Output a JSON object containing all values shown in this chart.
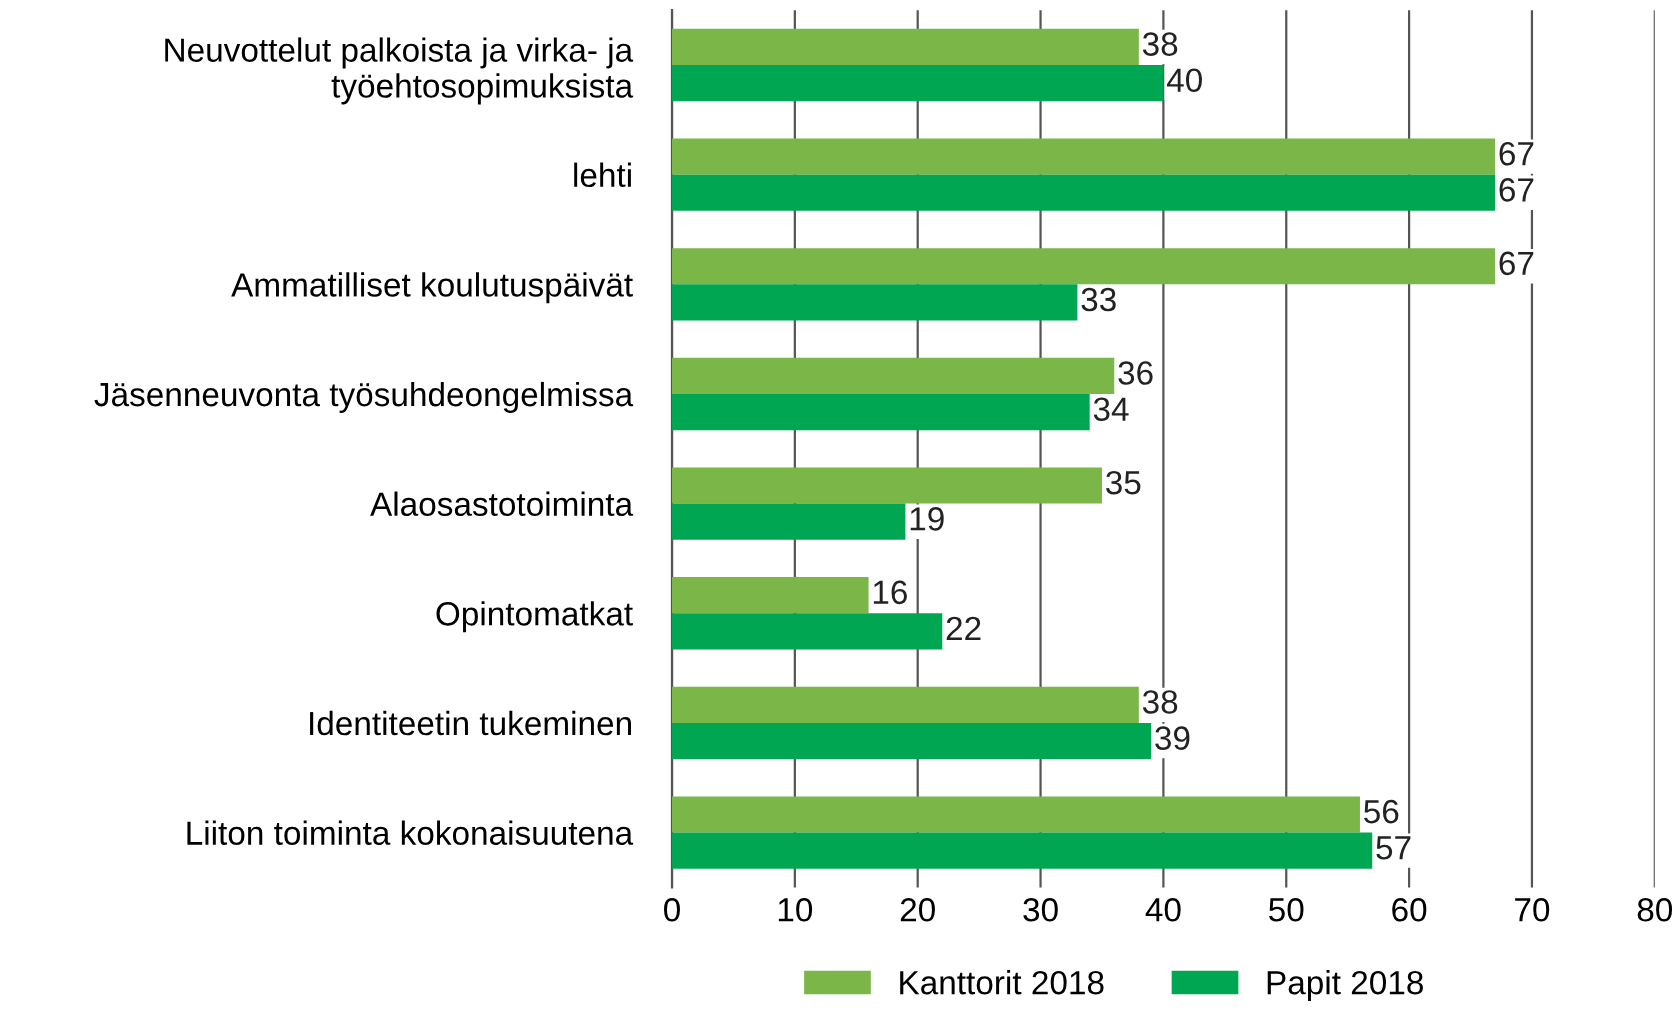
{
  "chart_data": {
    "type": "bar",
    "orientation": "horizontal",
    "categories": [
      "Neuvottelut palkoista ja virka- ja\ntyöehtosopimuksista",
      "lehti",
      "Ammatilliset koulutuspäivät",
      "Jäsenneuvonta työsuhdeongelmissa",
      "Alaosastotoiminta",
      "Opintomatkat",
      "Identiteetin tukeminen",
      "Liiton toiminta kokonaisuutena"
    ],
    "series": [
      {
        "name": "Kanttorit 2018",
        "color": "#7ab648",
        "values": [
          38,
          67,
          67,
          36,
          35,
          16,
          38,
          56
        ]
      },
      {
        "name": "Papit 2018",
        "color": "#00a651",
        "values": [
          40,
          67,
          33,
          34,
          19,
          22,
          39,
          57
        ]
      }
    ],
    "xlim": [
      0,
      80
    ],
    "xticks": [
      0,
      10,
      20,
      30,
      40,
      50,
      60,
      70,
      80
    ],
    "grid": "x",
    "legend": "bottom",
    "data_labels": true
  }
}
